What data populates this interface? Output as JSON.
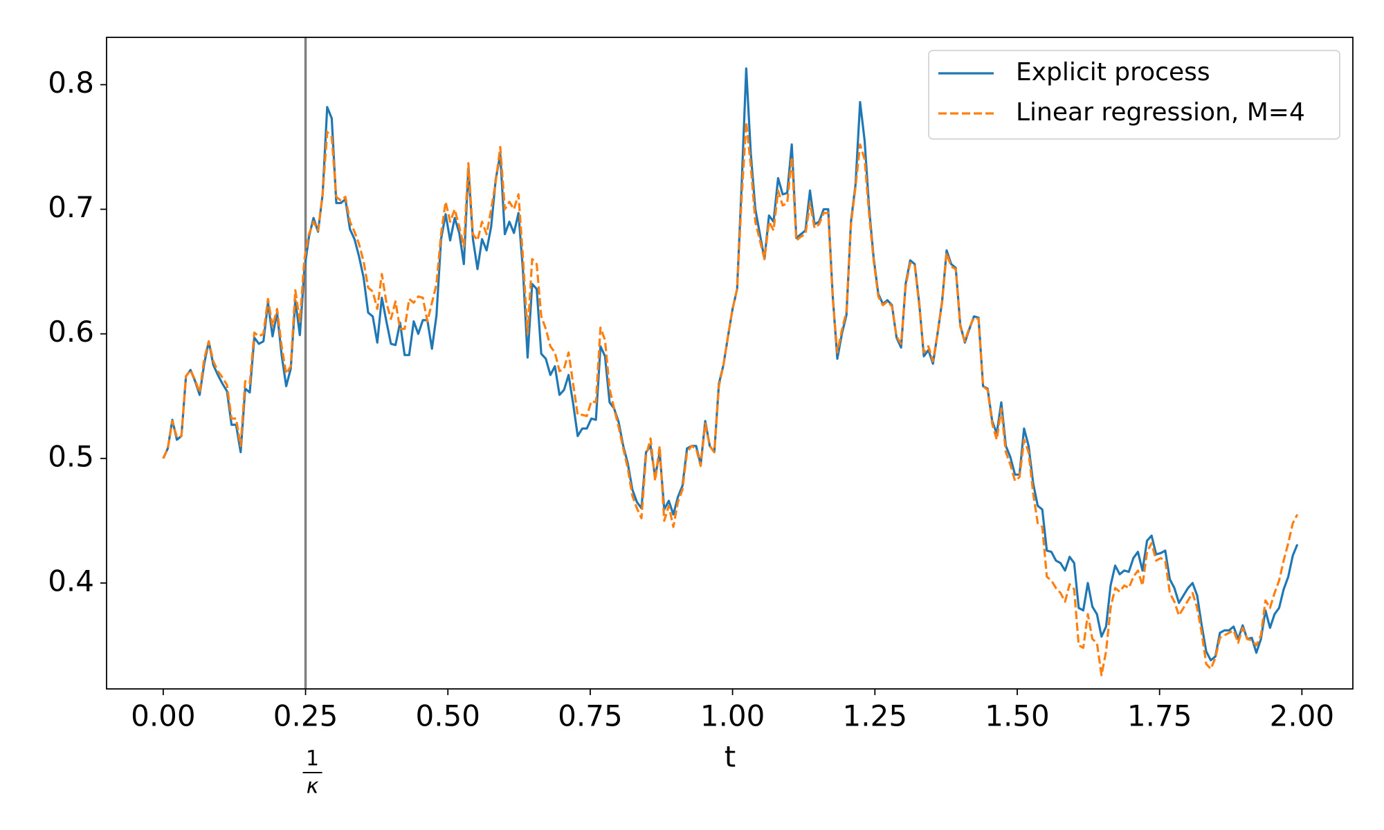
{
  "chart_data": {
    "type": "line",
    "xlabel": "t",
    "vline": {
      "x": 0.25,
      "label_numerator": "1",
      "label_denominator": "κ",
      "color": "#808080"
    },
    "legend": "upper right",
    "xlim": [
      -0.0995,
      2.0895
    ],
    "ylim": [
      0.315,
      0.838
    ],
    "xticks": [
      {
        "value": 0,
        "label": "0.00"
      },
      {
        "value": 0.25,
        "label": "0.25"
      },
      {
        "value": 0.5,
        "label": "0.50"
      },
      {
        "value": 0.75,
        "label": "0.75"
      },
      {
        "value": 1,
        "label": "1.00"
      },
      {
        "value": 1.25,
        "label": "1.25"
      },
      {
        "value": 1.5,
        "label": "1.50"
      },
      {
        "value": 1.75,
        "label": "1.75"
      },
      {
        "value": 2,
        "label": "2.00"
      }
    ],
    "yticks": [
      0.4,
      0.5,
      0.6,
      0.7,
      0.8
    ],
    "x": [
      0,
      0.008,
      0.016,
      0.024,
      0.032,
      0.04,
      0.048,
      0.056,
      0.064,
      0.072,
      0.08,
      0.088,
      0.096,
      0.104,
      0.112,
      0.12,
      0.128,
      0.136,
      0.144,
      0.152,
      0.16,
      0.168,
      0.176,
      0.184,
      0.192,
      0.2,
      0.208,
      0.216,
      0.224,
      0.232,
      0.24,
      0.248,
      0.256,
      0.264,
      0.272,
      0.28,
      0.288,
      0.296,
      0.304,
      0.312,
      0.32,
      0.328,
      0.336,
      0.344,
      0.352,
      0.36,
      0.368,
      0.376,
      0.384,
      0.392,
      0.4,
      0.408,
      0.416,
      0.424,
      0.432,
      0.44,
      0.448,
      0.456,
      0.464,
      0.472,
      0.48,
      0.488,
      0.496,
      0.504,
      0.512,
      0.52,
      0.528,
      0.536,
      0.544,
      0.552,
      0.56,
      0.568,
      0.576,
      0.584,
      0.592,
      0.6,
      0.608,
      0.616,
      0.624,
      0.632,
      0.64,
      0.648,
      0.656,
      0.664,
      0.672,
      0.68,
      0.688,
      0.696,
      0.704,
      0.712,
      0.72,
      0.728,
      0.736,
      0.744,
      0.752,
      0.76,
      0.768,
      0.776,
      0.784,
      0.792,
      0.8,
      0.808,
      0.816,
      0.824,
      0.832,
      0.84,
      0.848,
      0.856,
      0.864,
      0.872,
      0.88,
      0.888,
      0.896,
      0.904,
      0.912,
      0.92,
      0.928,
      0.936,
      0.944,
      0.952,
      0.96,
      0.968,
      0.976,
      0.984,
      0.992,
      1,
      1.008,
      1.016,
      1.024,
      1.032,
      1.04,
      1.048,
      1.056,
      1.064,
      1.072,
      1.08,
      1.088,
      1.096,
      1.104,
      1.112,
      1.12,
      1.128,
      1.136,
      1.144,
      1.152,
      1.16,
      1.168,
      1.176,
      1.184,
      1.192,
      1.2,
      1.208,
      1.216,
      1.224,
      1.232,
      1.24,
      1.248,
      1.256,
      1.264,
      1.272,
      1.28,
      1.288,
      1.296,
      1.304,
      1.312,
      1.32,
      1.328,
      1.336,
      1.344,
      1.352,
      1.36,
      1.368,
      1.376,
      1.384,
      1.392,
      1.4,
      1.408,
      1.416,
      1.424,
      1.432,
      1.44,
      1.448,
      1.456,
      1.464,
      1.472,
      1.48,
      1.488,
      1.496,
      1.504,
      1.512,
      1.52,
      1.528,
      1.536,
      1.544,
      1.552,
      1.56,
      1.568,
      1.576,
      1.584,
      1.592,
      1.6,
      1.608,
      1.616,
      1.624,
      1.632,
      1.64,
      1.648,
      1.656,
      1.664,
      1.672,
      1.68,
      1.688,
      1.696,
      1.704,
      1.712,
      1.72,
      1.728,
      1.736,
      1.744,
      1.752,
      1.76,
      1.768,
      1.776,
      1.784,
      1.792,
      1.8,
      1.808,
      1.816,
      1.824,
      1.832,
      1.84,
      1.848,
      1.856,
      1.864,
      1.872,
      1.88,
      1.888,
      1.896,
      1.904,
      1.912,
      1.92,
      1.928,
      1.936,
      1.944,
      1.952,
      1.96,
      1.968,
      1.976,
      1.984,
      1.992
    ],
    "series": [
      {
        "name": "Explicit process",
        "color": "#1f77b4",
        "dash": "solid",
        "values": [
          0.5,
          0.508,
          0.531,
          0.515,
          0.518,
          0.566,
          0.571,
          0.562,
          0.551,
          0.576,
          0.594,
          0.575,
          0.567,
          0.56,
          0.554,
          0.527,
          0.527,
          0.505,
          0.556,
          0.553,
          0.597,
          0.592,
          0.594,
          0.625,
          0.598,
          0.617,
          0.583,
          0.558,
          0.572,
          0.627,
          0.599,
          0.652,
          0.678,
          0.693,
          0.682,
          0.712,
          0.782,
          0.773,
          0.705,
          0.705,
          0.708,
          0.684,
          0.676,
          0.662,
          0.645,
          0.617,
          0.614,
          0.593,
          0.629,
          0.61,
          0.592,
          0.591,
          0.609,
          0.583,
          0.583,
          0.61,
          0.6,
          0.611,
          0.611,
          0.588,
          0.615,
          0.676,
          0.696,
          0.675,
          0.693,
          0.681,
          0.656,
          0.733,
          0.676,
          0.652,
          0.676,
          0.667,
          0.686,
          0.724,
          0.744,
          0.68,
          0.69,
          0.681,
          0.697,
          0.65,
          0.581,
          0.64,
          0.636,
          0.584,
          0.58,
          0.567,
          0.574,
          0.551,
          0.555,
          0.567,
          0.544,
          0.518,
          0.524,
          0.524,
          0.532,
          0.531,
          0.59,
          0.582,
          0.545,
          0.54,
          0.529,
          0.51,
          0.496,
          0.475,
          0.465,
          0.46,
          0.505,
          0.51,
          0.485,
          0.505,
          0.459,
          0.466,
          0.455,
          0.469,
          0.478,
          0.508,
          0.51,
          0.51,
          0.495,
          0.53,
          0.51,
          0.505,
          0.56,
          0.575,
          0.598,
          0.62,
          0.636,
          0.72,
          0.813,
          0.745,
          0.7,
          0.68,
          0.66,
          0.695,
          0.69,
          0.725,
          0.712,
          0.713,
          0.752,
          0.677,
          0.68,
          0.683,
          0.715,
          0.688,
          0.69,
          0.7,
          0.7,
          0.63,
          0.58,
          0.6,
          0.615,
          0.69,
          0.72,
          0.786,
          0.755,
          0.7,
          0.66,
          0.632,
          0.624,
          0.627,
          0.623,
          0.597,
          0.589,
          0.64,
          0.659,
          0.656,
          0.624,
          0.582,
          0.587,
          0.576,
          0.6,
          0.626,
          0.667,
          0.656,
          0.653,
          0.607,
          0.593,
          0.604,
          0.614,
          0.613,
          0.558,
          0.556,
          0.53,
          0.52,
          0.545,
          0.51,
          0.501,
          0.487,
          0.487,
          0.524,
          0.51,
          0.48,
          0.462,
          0.459,
          0.426,
          0.425,
          0.418,
          0.416,
          0.41,
          0.421,
          0.416,
          0.38,
          0.378,
          0.4,
          0.381,
          0.375,
          0.357,
          0.365,
          0.398,
          0.414,
          0.407,
          0.41,
          0.409,
          0.42,
          0.425,
          0.41,
          0.434,
          0.438,
          0.423,
          0.424,
          0.426,
          0.403,
          0.396,
          0.384,
          0.39,
          0.396,
          0.4,
          0.39,
          0.366,
          0.345,
          0.338,
          0.341,
          0.36,
          0.362,
          0.362,
          0.365,
          0.355,
          0.366,
          0.355,
          0.356,
          0.344,
          0.355,
          0.378,
          0.364,
          0.375,
          0.38,
          0.395,
          0.405,
          0.422,
          0.431
        ]
      },
      {
        "name": "Linear regression, M=4",
        "color": "#ff7f0e",
        "dash": "dashed",
        "values": [
          0.5,
          0.508,
          0.53,
          0.517,
          0.518,
          0.566,
          0.571,
          0.563,
          0.553,
          0.58,
          0.594,
          0.578,
          0.57,
          0.565,
          0.559,
          0.532,
          0.532,
          0.51,
          0.562,
          0.56,
          0.601,
          0.598,
          0.6,
          0.628,
          0.606,
          0.62,
          0.59,
          0.568,
          0.574,
          0.635,
          0.61,
          0.66,
          0.68,
          0.69,
          0.683,
          0.712,
          0.762,
          0.758,
          0.71,
          0.707,
          0.71,
          0.69,
          0.682,
          0.672,
          0.658,
          0.637,
          0.634,
          0.62,
          0.648,
          0.625,
          0.612,
          0.626,
          0.604,
          0.604,
          0.628,
          0.625,
          0.63,
          0.629,
          0.61,
          0.625,
          0.64,
          0.68,
          0.706,
          0.69,
          0.7,
          0.686,
          0.67,
          0.737,
          0.68,
          0.675,
          0.69,
          0.68,
          0.7,
          0.722,
          0.75,
          0.7,
          0.706,
          0.7,
          0.712,
          0.66,
          0.6,
          0.66,
          0.656,
          0.614,
          0.604,
          0.59,
          0.585,
          0.57,
          0.572,
          0.585,
          0.56,
          0.535,
          0.535,
          0.534,
          0.546,
          0.545,
          0.605,
          0.595,
          0.556,
          0.54,
          0.525,
          0.508,
          0.492,
          0.47,
          0.46,
          0.452,
          0.502,
          0.516,
          0.482,
          0.51,
          0.45,
          0.462,
          0.445,
          0.465,
          0.475,
          0.505,
          0.51,
          0.508,
          0.494,
          0.528,
          0.51,
          0.505,
          0.558,
          0.575,
          0.598,
          0.62,
          0.636,
          0.71,
          0.77,
          0.735,
          0.69,
          0.675,
          0.66,
          0.69,
          0.683,
          0.715,
          0.703,
          0.705,
          0.742,
          0.675,
          0.678,
          0.68,
          0.705,
          0.685,
          0.688,
          0.697,
          0.697,
          0.628,
          0.585,
          0.603,
          0.618,
          0.688,
          0.718,
          0.752,
          0.74,
          0.695,
          0.658,
          0.63,
          0.623,
          0.626,
          0.622,
          0.598,
          0.592,
          0.638,
          0.657,
          0.655,
          0.622,
          0.585,
          0.59,
          0.578,
          0.6,
          0.625,
          0.665,
          0.654,
          0.652,
          0.606,
          0.594,
          0.605,
          0.613,
          0.612,
          0.558,
          0.555,
          0.528,
          0.515,
          0.54,
          0.505,
          0.495,
          0.482,
          0.485,
          0.515,
          0.505,
          0.472,
          0.448,
          0.445,
          0.405,
          0.402,
          0.396,
          0.392,
          0.385,
          0.399,
          0.395,
          0.35,
          0.348,
          0.375,
          0.355,
          0.352,
          0.326,
          0.345,
          0.38,
          0.396,
          0.393,
          0.398,
          0.396,
          0.405,
          0.41,
          0.398,
          0.425,
          0.432,
          0.418,
          0.42,
          0.418,
          0.392,
          0.385,
          0.374,
          0.38,
          0.386,
          0.392,
          0.38,
          0.36,
          0.335,
          0.331,
          0.34,
          0.356,
          0.358,
          0.36,
          0.362,
          0.352,
          0.364,
          0.355,
          0.354,
          0.35,
          0.358,
          0.386,
          0.38,
          0.392,
          0.402,
          0.418,
          0.432,
          0.448,
          0.455
        ]
      }
    ]
  }
}
